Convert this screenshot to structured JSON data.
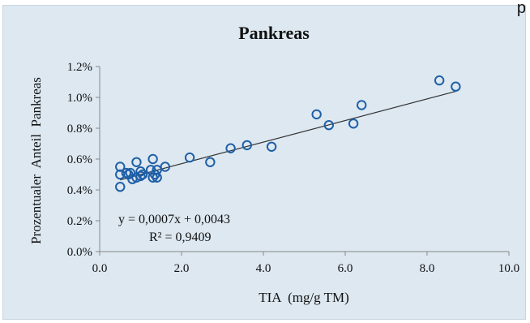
{
  "corner_text": "p",
  "chart_data": {
    "type": "scatter",
    "title": "Pankreas",
    "xlabel": "TIA  (mg/g TM)",
    "ylabel": "Prozentualer  Anteil  Pankreas",
    "xlim": [
      0,
      10
    ],
    "ylim": [
      0,
      1.2
    ],
    "x_ticks": [
      0,
      2,
      4,
      6,
      8,
      10
    ],
    "x_tick_labels": [
      "0.0",
      "2.0",
      "4.0",
      "6.0",
      "8.0",
      "10.0"
    ],
    "y_ticks": [
      0,
      0.2,
      0.4,
      0.6,
      0.8,
      1.0,
      1.2
    ],
    "y_tick_labels": [
      "0.0%",
      "0.2%",
      "0.4%",
      "0.6%",
      "0.8%",
      "1.0%",
      "1.2%"
    ],
    "grid": false,
    "marker_color": "#1f5fa6",
    "line_color": "#333333",
    "trendline": {
      "slope": 0.0007,
      "intercept": 0.0043,
      "x_range": [
        0.5,
        8.7
      ]
    },
    "annotations": [
      "y = 0,0007x  + 0,0043",
      "R² = 0,9409"
    ],
    "points": [
      {
        "x": 0.5,
        "y": 0.55
      },
      {
        "x": 0.5,
        "y": 0.5
      },
      {
        "x": 0.5,
        "y": 0.42
      },
      {
        "x": 0.65,
        "y": 0.51
      },
      {
        "x": 0.7,
        "y": 0.5
      },
      {
        "x": 0.75,
        "y": 0.51
      },
      {
        "x": 0.8,
        "y": 0.47
      },
      {
        "x": 0.9,
        "y": 0.58
      },
      {
        "x": 0.9,
        "y": 0.48
      },
      {
        "x": 1.0,
        "y": 0.49
      },
      {
        "x": 1.0,
        "y": 0.52
      },
      {
        "x": 1.05,
        "y": 0.5
      },
      {
        "x": 1.25,
        "y": 0.53
      },
      {
        "x": 1.3,
        "y": 0.6
      },
      {
        "x": 1.3,
        "y": 0.48
      },
      {
        "x": 1.35,
        "y": 0.5
      },
      {
        "x": 1.4,
        "y": 0.53
      },
      {
        "x": 1.4,
        "y": 0.48
      },
      {
        "x": 1.6,
        "y": 0.55
      },
      {
        "x": 2.2,
        "y": 0.61
      },
      {
        "x": 2.7,
        "y": 0.58
      },
      {
        "x": 3.2,
        "y": 0.67
      },
      {
        "x": 3.6,
        "y": 0.69
      },
      {
        "x": 4.2,
        "y": 0.68
      },
      {
        "x": 5.3,
        "y": 0.89
      },
      {
        "x": 5.6,
        "y": 0.82
      },
      {
        "x": 6.2,
        "y": 0.83
      },
      {
        "x": 6.4,
        "y": 0.95
      },
      {
        "x": 8.3,
        "y": 1.11
      },
      {
        "x": 8.7,
        "y": 1.07
      }
    ]
  }
}
